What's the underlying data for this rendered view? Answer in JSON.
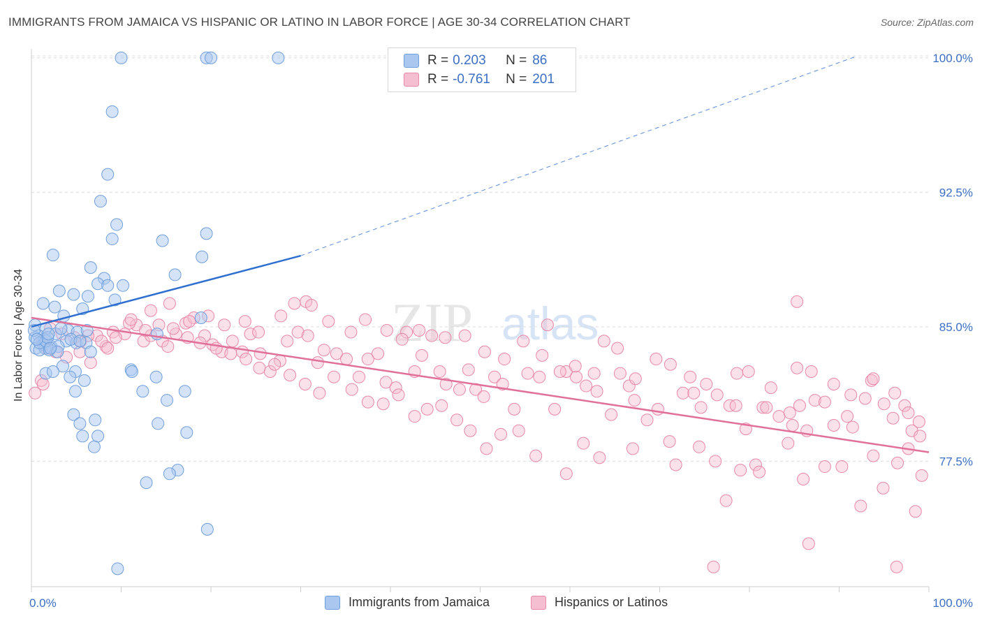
{
  "title": "IMMIGRANTS FROM JAMAICA VS HISPANIC OR LATINO IN LABOR FORCE | AGE 30-34 CORRELATION CHART",
  "source": "Source: ZipAtlas.com",
  "watermark": {
    "zip": "ZIP",
    "atlas": "atlas"
  },
  "legend": {
    "r_label": "R =",
    "n_label": "N =",
    "rows": [
      {
        "r": "0.203",
        "n": "86"
      },
      {
        "r": "-0.761",
        "n": "201"
      }
    ]
  },
  "colors": {
    "blue_fill": "#a9c7ef",
    "blue_stroke": "#6f9fdc",
    "blue_line": "#2f6fcf",
    "pink_fill": "#f6bfd1",
    "pink_stroke": "#e887a8",
    "pink_line": "#e0709a",
    "grid": "#dcdcdc",
    "tick_label": "#3b6fc4"
  },
  "chart_data": {
    "type": "scatter",
    "title": "IMMIGRANTS FROM JAMAICA VS HISPANIC OR LATINO IN LABOR FORCE | AGE 30-34 CORRELATION CHART",
    "xlabel": "",
    "ylabel": "In Labor Force | Age 30-34",
    "xlim": [
      0,
      100
    ],
    "ylim": [
      70.5,
      100.5
    ],
    "x_tick_labels": [
      {
        "value": 0,
        "label": "0.0%"
      },
      {
        "value": 100,
        "label": "100.0%"
      }
    ],
    "y_ticks": [
      {
        "value": 100,
        "label": "100.0%"
      },
      {
        "value": 92.5,
        "label": "92.5%"
      },
      {
        "value": 85,
        "label": "85.0%"
      },
      {
        "value": 77.5,
        "label": "77.5%"
      }
    ],
    "series": [
      {
        "name": "Immigrants from Jamaica",
        "r": 0.203,
        "n": 86,
        "trend": {
          "solid": [
            [
              0,
              85.0
            ],
            [
              30,
              88.96
            ]
          ],
          "dashed": [
            [
              30,
              88.96
            ],
            [
              92,
              100.1
            ]
          ]
        },
        "points": [
          [
            10,
            100
          ],
          [
            19.5,
            100
          ],
          [
            20,
            100
          ],
          [
            27.5,
            100
          ],
          [
            9,
            97
          ],
          [
            8.5,
            93.5
          ],
          [
            7.7,
            92
          ],
          [
            9.5,
            90.7
          ],
          [
            19.5,
            90.2
          ],
          [
            9,
            89.9
          ],
          [
            14.6,
            89.8
          ],
          [
            2.4,
            89
          ],
          [
            19,
            88.9
          ],
          [
            6.6,
            88.3
          ],
          [
            16,
            87.9
          ],
          [
            8.1,
            87.7
          ],
          [
            7.4,
            87.4
          ],
          [
            10.2,
            87.3
          ],
          [
            8.5,
            87.3
          ],
          [
            3.1,
            87
          ],
          [
            4.7,
            86.8
          ],
          [
            6.3,
            86.7
          ],
          [
            9.3,
            86.5
          ],
          [
            1.3,
            86.3
          ],
          [
            2.6,
            86.1
          ],
          [
            5.7,
            86
          ],
          [
            3.6,
            85.6
          ],
          [
            18.9,
            85.5
          ],
          [
            0.4,
            85.1
          ],
          [
            1.6,
            84.9
          ],
          [
            4.1,
            84.8
          ],
          [
            5.1,
            84.7
          ],
          [
            6.2,
            84.8
          ],
          [
            14,
            84.6
          ],
          [
            0.8,
            84.5
          ],
          [
            2.7,
            84.6
          ],
          [
            0.4,
            84.4
          ],
          [
            1.4,
            84.3
          ],
          [
            3.9,
            84.2
          ],
          [
            5,
            84.1
          ],
          [
            6.1,
            84.1
          ],
          [
            1.3,
            84
          ],
          [
            2.2,
            83.9
          ],
          [
            0.5,
            83.8
          ],
          [
            1.5,
            83.8
          ],
          [
            0.9,
            83.7
          ],
          [
            2,
            83.7
          ],
          [
            3,
            83.9
          ],
          [
            6.6,
            83.6
          ],
          [
            0.3,
            84.8
          ],
          [
            0.9,
            84.1
          ],
          [
            1.6,
            84.2
          ],
          [
            1.8,
            84.4
          ],
          [
            2.9,
            83.6
          ],
          [
            4.4,
            84.3
          ],
          [
            5.4,
            84.2
          ],
          [
            4.9,
            82.5
          ],
          [
            3.5,
            82.8
          ],
          [
            1.6,
            82.4
          ],
          [
            2.4,
            82.5
          ],
          [
            11.1,
            82.6
          ],
          [
            11.2,
            82.5
          ],
          [
            13.9,
            82.2
          ],
          [
            4.3,
            82.2
          ],
          [
            5.9,
            82
          ],
          [
            4.9,
            81.4
          ],
          [
            12.4,
            81.4
          ],
          [
            17.1,
            81.4
          ],
          [
            15.1,
            80.9
          ],
          [
            4.7,
            80.1
          ],
          [
            7.1,
            79.8
          ],
          [
            5.4,
            79.6
          ],
          [
            14.1,
            79.6
          ],
          [
            17.3,
            79.1
          ],
          [
            5.7,
            78.9
          ],
          [
            7.4,
            78.9
          ],
          [
            7,
            78.3
          ],
          [
            16.3,
            77
          ],
          [
            15.4,
            76.8
          ],
          [
            12.8,
            76.3
          ],
          [
            19.6,
            73.7
          ],
          [
            9.6,
            71.5
          ],
          [
            0.6,
            84.3
          ],
          [
            1.9,
            84.6
          ],
          [
            3.3,
            84.9
          ],
          [
            2.1,
            83.8
          ]
        ]
      },
      {
        "name": "Hispanics or Latinos",
        "r": -0.761,
        "n": 201,
        "trend": [
          [
            0,
            85.5
          ],
          [
            100,
            78.0
          ]
        ],
        "points": [
          [
            0.4,
            81.3
          ],
          [
            1.1,
            82
          ],
          [
            1.3,
            81.8
          ],
          [
            1.7,
            83.8
          ],
          [
            2.7,
            83.6
          ],
          [
            3.9,
            83.3
          ],
          [
            5.5,
            84.2
          ],
          [
            7.3,
            84.5
          ],
          [
            8.3,
            83.9
          ],
          [
            9.1,
            84.7
          ],
          [
            10.4,
            84.6
          ],
          [
            11.7,
            85.1
          ],
          [
            12.5,
            84.2
          ],
          [
            13.3,
            84.5
          ],
          [
            14.6,
            84.2
          ],
          [
            15.2,
            83.9
          ],
          [
            16.1,
            84.6
          ],
          [
            17.2,
            85.2
          ],
          [
            18.1,
            85.5
          ],
          [
            19.3,
            84.5
          ],
          [
            20.2,
            84
          ],
          [
            21.2,
            83.6
          ],
          [
            22.4,
            84.2
          ],
          [
            23.5,
            83.6
          ],
          [
            24.4,
            84.6
          ],
          [
            25.5,
            83.5
          ],
          [
            26.6,
            82.5
          ],
          [
            27.7,
            83.1
          ],
          [
            28.5,
            84.2
          ],
          [
            29.7,
            84.7
          ],
          [
            30.8,
            84.5
          ],
          [
            31.9,
            83
          ],
          [
            32.6,
            83.7
          ],
          [
            34,
            83.5
          ],
          [
            35.1,
            83.2
          ],
          [
            36.5,
            82.2
          ],
          [
            37.5,
            83.2
          ],
          [
            38.6,
            83.5
          ],
          [
            39.5,
            81.9
          ],
          [
            40.6,
            81.6
          ],
          [
            41.8,
            84.7
          ],
          [
            42.7,
            82.5
          ],
          [
            43.5,
            83.4
          ],
          [
            44.6,
            84.5
          ],
          [
            45.5,
            82.5
          ],
          [
            46.2,
            81.8
          ],
          [
            47.7,
            81.5
          ],
          [
            48.7,
            82.6
          ],
          [
            49.5,
            81.5
          ],
          [
            50.4,
            81.1
          ],
          [
            51.6,
            82.2
          ],
          [
            52.5,
            81.8
          ],
          [
            53.8,
            80.4
          ],
          [
            55.3,
            82.4
          ],
          [
            56.6,
            82.2
          ],
          [
            58.3,
            80.4
          ],
          [
            59.6,
            82.5
          ],
          [
            60.7,
            82.2
          ],
          [
            61.8,
            81.7
          ],
          [
            63,
            81.4
          ],
          [
            64.6,
            80.1
          ],
          [
            65.6,
            82.4
          ],
          [
            66.6,
            81.7
          ],
          [
            67.2,
            80.9
          ],
          [
            68.6,
            79.8
          ],
          [
            69.8,
            80.4
          ],
          [
            71.1,
            78.6
          ],
          [
            72.6,
            81.3
          ],
          [
            73.8,
            81.3
          ],
          [
            74.6,
            80.5
          ],
          [
            76.4,
            81.2
          ],
          [
            77.8,
            80.6
          ],
          [
            78.6,
            82.4
          ],
          [
            79.6,
            79.3
          ],
          [
            81.5,
            80.5
          ],
          [
            82.4,
            81.6
          ],
          [
            83.3,
            80
          ],
          [
            84.8,
            79.5
          ],
          [
            85.6,
            80.6
          ],
          [
            86.4,
            79.2
          ],
          [
            87.3,
            80.9
          ],
          [
            88.4,
            80.8
          ],
          [
            89.4,
            79.5
          ],
          [
            90.9,
            80
          ],
          [
            91.5,
            79.4
          ],
          [
            92.9,
            81
          ],
          [
            93.6,
            82
          ],
          [
            95,
            80.7
          ],
          [
            96,
            79.9
          ],
          [
            97.3,
            80.6
          ],
          [
            98.1,
            79.2
          ],
          [
            99,
            78.9
          ],
          [
            96.5,
            77.4
          ],
          [
            98.5,
            74.7
          ],
          [
            94.9,
            76
          ],
          [
            99.2,
            76.7
          ],
          [
            92.4,
            75
          ],
          [
            93.8,
            77.8
          ],
          [
            97.7,
            78.2
          ],
          [
            90.3,
            77.2
          ],
          [
            88.4,
            77.2
          ],
          [
            86,
            76.5
          ],
          [
            84.3,
            78.5
          ],
          [
            80.7,
            77.3
          ],
          [
            79,
            77
          ],
          [
            81.1,
            76.9
          ],
          [
            76.2,
            77.5
          ],
          [
            74.4,
            78.3
          ],
          [
            71.8,
            77.3
          ],
          [
            67,
            78.2
          ],
          [
            63.3,
            77.7
          ],
          [
            61.5,
            78.5
          ],
          [
            59.6,
            76.8
          ],
          [
            56.2,
            77.8
          ],
          [
            54.3,
            79.2
          ],
          [
            52.3,
            79
          ],
          [
            50.7,
            78.2
          ],
          [
            48.9,
            79.2
          ],
          [
            47.4,
            79.8
          ],
          [
            45.7,
            80.6
          ],
          [
            44.1,
            80.4
          ],
          [
            42.7,
            80
          ],
          [
            40.9,
            81.2
          ],
          [
            39.2,
            80.7
          ],
          [
            37.5,
            80.8
          ],
          [
            35.7,
            81.5
          ],
          [
            33.7,
            82.2
          ],
          [
            32.1,
            81.3
          ],
          [
            30.5,
            81.8
          ],
          [
            28.8,
            82.3
          ],
          [
            27.1,
            82.9
          ],
          [
            25.4,
            82.7
          ],
          [
            23.9,
            83.2
          ],
          [
            22.2,
            83.5
          ],
          [
            20.6,
            83.8
          ],
          [
            18.8,
            84.1
          ],
          [
            17.4,
            84.4
          ],
          [
            15.8,
            84.9
          ],
          [
            14.2,
            85.1
          ],
          [
            12.7,
            84.8
          ],
          [
            10.9,
            85.2
          ],
          [
            9.4,
            84.4
          ],
          [
            7.8,
            84.2
          ],
          [
            6.3,
            84.5
          ],
          [
            4.8,
            84.4
          ],
          [
            3.4,
            84.6
          ],
          [
            2.1,
            84.9
          ],
          [
            1.2,
            84.2
          ],
          [
            5.4,
            83.6
          ],
          [
            6.6,
            83
          ],
          [
            8.5,
            83.8
          ],
          [
            11.1,
            85.4
          ],
          [
            13.3,
            85.9
          ],
          [
            15.4,
            86.3
          ],
          [
            17.6,
            85.3
          ],
          [
            19.7,
            85.6
          ],
          [
            21.5,
            85.1
          ],
          [
            23.8,
            85.3
          ],
          [
            25.3,
            84.7
          ],
          [
            27.8,
            85.6
          ],
          [
            29.3,
            86.3
          ],
          [
            30.6,
            86.4
          ],
          [
            31.2,
            86.2
          ],
          [
            33.1,
            85.3
          ],
          [
            35.6,
            84.7
          ],
          [
            37.2,
            85.4
          ],
          [
            39.6,
            84.8
          ],
          [
            41.3,
            84.3
          ],
          [
            43.2,
            84.8
          ],
          [
            46.1,
            84.4
          ],
          [
            48.3,
            84.5
          ],
          [
            50.5,
            83.6
          ],
          [
            52.7,
            83.2
          ],
          [
            54.8,
            84.2
          ],
          [
            56.9,
            83.4
          ],
          [
            58.9,
            82.5
          ],
          [
            60.6,
            82.8
          ],
          [
            62.7,
            82.4
          ],
          [
            65.3,
            83.8
          ],
          [
            67.3,
            82.1
          ],
          [
            69.6,
            83.2
          ],
          [
            71.2,
            82.9
          ],
          [
            73.4,
            82.2
          ],
          [
            75.2,
            81.8
          ],
          [
            78.5,
            80.6
          ],
          [
            79.9,
            82.5
          ],
          [
            81.9,
            80.5
          ],
          [
            84.5,
            80.2
          ],
          [
            85.3,
            82.7
          ],
          [
            86.9,
            82.5
          ],
          [
            89.4,
            81.8
          ],
          [
            91.3,
            81.2
          ],
          [
            93.8,
            82.1
          ],
          [
            96.2,
            81.3
          ],
          [
            97.7,
            80.2
          ],
          [
            98.9,
            79.7
          ],
          [
            77.4,
            75.3
          ],
          [
            86.6,
            72.9
          ],
          [
            76,
            71.6
          ],
          [
            96.4,
            71.6
          ],
          [
            57.5,
            85.1
          ],
          [
            63.8,
            84.2
          ],
          [
            85.3,
            86.4
          ]
        ]
      }
    ]
  },
  "bottom_legend": [
    {
      "label": "Immigrants from Jamaica"
    },
    {
      "label": "Hispanics or Latinos"
    }
  ]
}
